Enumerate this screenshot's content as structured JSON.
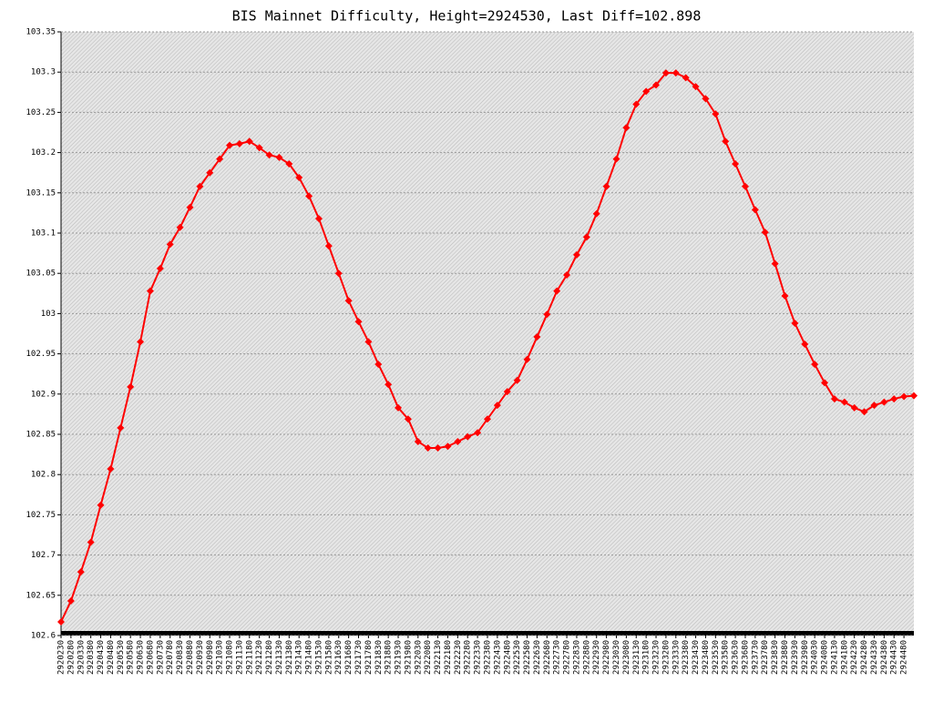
{
  "chart_data": {
    "type": "line",
    "title": "BIS Mainnet Difficulty, Height=2924530, Last Diff=102.898",
    "x": [
      2920230,
      2920280,
      2920330,
      2920380,
      2920430,
      2920480,
      2920530,
      2920580,
      2920630,
      2920680,
      2920730,
      2920780,
      2920830,
      2920880,
      2920930,
      2920980,
      2921030,
      2921080,
      2921130,
      2921180,
      2921230,
      2921280,
      2921330,
      2921380,
      2921430,
      2921480,
      2921530,
      2921580,
      2921630,
      2921680,
      2921730,
      2921780,
      2921830,
      2921880,
      2921930,
      2921980,
      2922030,
      2922080,
      2922130,
      2922180,
      2922230,
      2922280,
      2922330,
      2922380,
      2922430,
      2922480,
      2922530,
      2922580,
      2922630,
      2922680,
      2922730,
      2922780,
      2922830,
      2922880,
      2922930,
      2922980,
      2923030,
      2923080,
      2923130,
      2923180,
      2923230,
      2923280,
      2923330,
      2923380,
      2923430,
      2923480,
      2923530,
      2923580,
      2923630,
      2923680,
      2923730,
      2923780,
      2923830,
      2923880,
      2923930,
      2923980,
      2924030,
      2924080,
      2924130,
      2924180,
      2924230,
      2924280,
      2924330,
      2924380,
      2924430,
      2924480,
      2924530
    ],
    "series": [
      {
        "color": "#ff0000",
        "values": [
          102.617,
          102.643,
          102.679,
          102.716,
          102.762,
          102.807,
          102.858,
          102.909,
          102.965,
          103.028,
          103.056,
          103.086,
          103.107,
          103.132,
          103.158,
          103.175,
          103.192,
          103.209,
          103.211,
          103.214,
          103.206,
          103.197,
          103.194,
          103.186,
          103.169,
          103.146,
          103.118,
          103.084,
          103.05,
          103.016,
          102.99,
          102.965,
          102.937,
          102.912,
          102.883,
          102.869,
          102.841,
          102.833,
          102.833,
          102.835,
          102.841,
          102.847,
          102.852,
          102.869,
          102.886,
          102.903,
          102.917,
          102.943,
          102.971,
          102.999,
          103.028,
          103.048,
          103.073,
          103.095,
          103.124,
          103.158,
          103.192,
          103.231,
          103.26,
          103.276,
          103.284,
          103.299,
          103.299,
          103.293,
          103.282,
          103.267,
          103.248,
          103.214,
          103.186,
          103.158,
          103.129,
          103.101,
          103.062,
          103.022,
          102.988,
          102.962,
          102.937,
          102.914,
          102.894,
          102.89,
          102.883,
          102.878,
          102.886,
          102.89,
          102.894,
          102.897,
          102.898
        ]
      }
    ],
    "xlim": [
      2920230,
      2924530
    ],
    "xticks": [
      2920230,
      2920280,
      2920330,
      2920380,
      2920430,
      2920480,
      2920530,
      2920580,
      2920630,
      2920680,
      2920730,
      2920780,
      2920830,
      2920880,
      2920930,
      2920980,
      2921030,
      2921080,
      2921130,
      2921180,
      2921230,
      2921280,
      2921330,
      2921380,
      2921430,
      2921480,
      2921530,
      2921580,
      2921630,
      2921680,
      2921730,
      2921780,
      2921830,
      2921880,
      2921930,
      2921980,
      2922030,
      2922080,
      2922130,
      2922180,
      2922230,
      2922280,
      2922330,
      2922380,
      2922430,
      2922480,
      2922530,
      2922580,
      2922630,
      2922680,
      2922730,
      2922780,
      2922830,
      2922880,
      2922930,
      2922980,
      2923030,
      2923080,
      2923130,
      2923180,
      2923230,
      2923280,
      2923330,
      2923380,
      2923430,
      2923480,
      2923530,
      2923580,
      2923630,
      2923680,
      2923730,
      2923780,
      2923830,
      2923880,
      2923930,
      2923980,
      2924030,
      2924080,
      2924130,
      2924180,
      2924230,
      2924280,
      2924330,
      2924380,
      2924430,
      2924480
    ],
    "ylim": [
      102.6,
      103.35
    ],
    "yticks": [
      102.6,
      102.65,
      102.7,
      102.75,
      102.8,
      102.85,
      102.9,
      102.95,
      103,
      103.05,
      103.1,
      103.15,
      103.2,
      103.25,
      103.3,
      103.35
    ],
    "grid": true
  }
}
